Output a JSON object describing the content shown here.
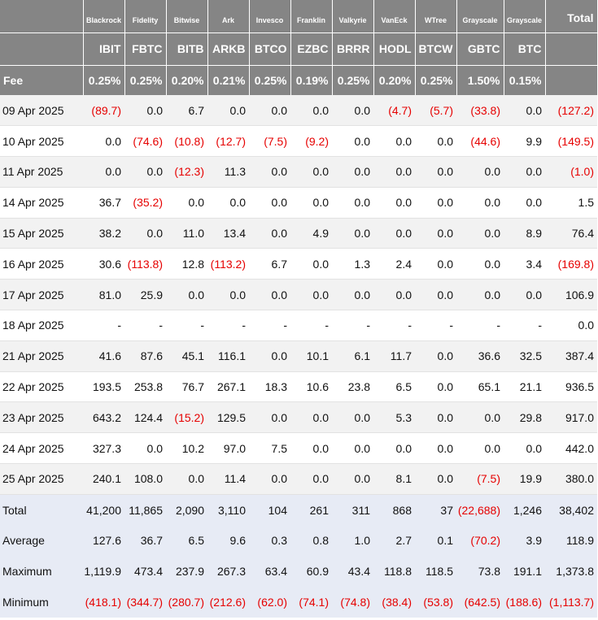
{
  "table": {
    "total_header": "Total",
    "fee_label": "Fee",
    "issuers": [
      "Blackrock",
      "Fidelity",
      "Bitwise",
      "Ark",
      "Invesco",
      "Franklin",
      "Valkyrie",
      "VanEck",
      "WTree",
      "Grayscale",
      "Grayscale"
    ],
    "tickers": [
      "IBIT",
      "FBTC",
      "BITB",
      "ARKB",
      "BTCO",
      "EZBC",
      "BRRR",
      "HODL",
      "BTCW",
      "GBTC",
      "BTC"
    ],
    "fees": [
      "0.25%",
      "0.25%",
      "0.20%",
      "0.21%",
      "0.25%",
      "0.19%",
      "0.25%",
      "0.20%",
      "0.25%",
      "1.50%",
      "0.15%"
    ],
    "rows": [
      {
        "date": "09 Apr 2025",
        "values": [
          "(89.7)",
          "0.0",
          "6.7",
          "0.0",
          "0.0",
          "0.0",
          "0.0",
          "(4.7)",
          "(5.7)",
          "(33.8)",
          "0.0"
        ],
        "total": "(127.2)"
      },
      {
        "date": "10 Apr 2025",
        "values": [
          "0.0",
          "(74.6)",
          "(10.8)",
          "(12.7)",
          "(7.5)",
          "(9.2)",
          "0.0",
          "0.0",
          "0.0",
          "(44.6)",
          "9.9"
        ],
        "total": "(149.5)"
      },
      {
        "date": "11 Apr 2025",
        "values": [
          "0.0",
          "0.0",
          "(12.3)",
          "11.3",
          "0.0",
          "0.0",
          "0.0",
          "0.0",
          "0.0",
          "0.0",
          "0.0"
        ],
        "total": "(1.0)"
      },
      {
        "date": "14 Apr 2025",
        "values": [
          "36.7",
          "(35.2)",
          "0.0",
          "0.0",
          "0.0",
          "0.0",
          "0.0",
          "0.0",
          "0.0",
          "0.0",
          "0.0"
        ],
        "total": "1.5"
      },
      {
        "date": "15 Apr 2025",
        "values": [
          "38.2",
          "0.0",
          "11.0",
          "13.4",
          "0.0",
          "4.9",
          "0.0",
          "0.0",
          "0.0",
          "0.0",
          "8.9"
        ],
        "total": "76.4"
      },
      {
        "date": "16 Apr 2025",
        "values": [
          "30.6",
          "(113.8)",
          "12.8",
          "(113.2)",
          "6.7",
          "0.0",
          "1.3",
          "2.4",
          "0.0",
          "0.0",
          "3.4"
        ],
        "total": "(169.8)"
      },
      {
        "date": "17 Apr 2025",
        "values": [
          "81.0",
          "25.9",
          "0.0",
          "0.0",
          "0.0",
          "0.0",
          "0.0",
          "0.0",
          "0.0",
          "0.0",
          "0.0"
        ],
        "total": "106.9"
      },
      {
        "date": "18 Apr 2025",
        "values": [
          "-",
          "-",
          "-",
          "-",
          "-",
          "-",
          "-",
          "-",
          "-",
          "-",
          "-"
        ],
        "total": "0.0"
      },
      {
        "date": "21 Apr 2025",
        "values": [
          "41.6",
          "87.6",
          "45.1",
          "116.1",
          "0.0",
          "10.1",
          "6.1",
          "11.7",
          "0.0",
          "36.6",
          "32.5"
        ],
        "total": "387.4"
      },
      {
        "date": "22 Apr 2025",
        "values": [
          "193.5",
          "253.8",
          "76.7",
          "267.1",
          "18.3",
          "10.6",
          "23.8",
          "6.5",
          "0.0",
          "65.1",
          "21.1"
        ],
        "total": "936.5"
      },
      {
        "date": "23 Apr 2025",
        "values": [
          "643.2",
          "124.4",
          "(15.2)",
          "129.5",
          "0.0",
          "0.0",
          "0.0",
          "5.3",
          "0.0",
          "0.0",
          "29.8"
        ],
        "total": "917.0"
      },
      {
        "date": "24 Apr 2025",
        "values": [
          "327.3",
          "0.0",
          "10.2",
          "97.0",
          "7.5",
          "0.0",
          "0.0",
          "0.0",
          "0.0",
          "0.0",
          "0.0"
        ],
        "total": "442.0"
      },
      {
        "date": "25 Apr 2025",
        "values": [
          "240.1",
          "108.0",
          "0.0",
          "11.4",
          "0.0",
          "0.0",
          "0.0",
          "8.1",
          "0.0",
          "(7.5)",
          "19.9"
        ],
        "total": "380.0"
      }
    ],
    "summary": [
      {
        "label": "Total",
        "values": [
          "41,200",
          "11,865",
          "2,090",
          "3,110",
          "104",
          "261",
          "311",
          "868",
          "37",
          "(22,688)",
          "1,246"
        ],
        "total": "38,402"
      },
      {
        "label": "Average",
        "values": [
          "127.6",
          "36.7",
          "6.5",
          "9.6",
          "0.3",
          "0.8",
          "1.0",
          "2.7",
          "0.1",
          "(70.2)",
          "3.9"
        ],
        "total": "118.9"
      },
      {
        "label": "Maximum",
        "values": [
          "1,119.9",
          "473.4",
          "237.9",
          "267.3",
          "63.4",
          "60.9",
          "43.4",
          "118.8",
          "118.5",
          "73.8",
          "191.1"
        ],
        "total": "1,373.8"
      },
      {
        "label": "Minimum",
        "values": [
          "(418.1)",
          "(344.7)",
          "(280.7)",
          "(212.6)",
          "(62.0)",
          "(74.1)",
          "(74.8)",
          "(38.4)",
          "(53.8)",
          "(642.5)",
          "(188.6)"
        ],
        "total": "(1,113.7)"
      }
    ],
    "colors": {
      "header_bg": "#858585",
      "negative": "#e60000",
      "summary_bg": "#e7ebf5",
      "stripe_bg": "#f2f2f2"
    }
  }
}
